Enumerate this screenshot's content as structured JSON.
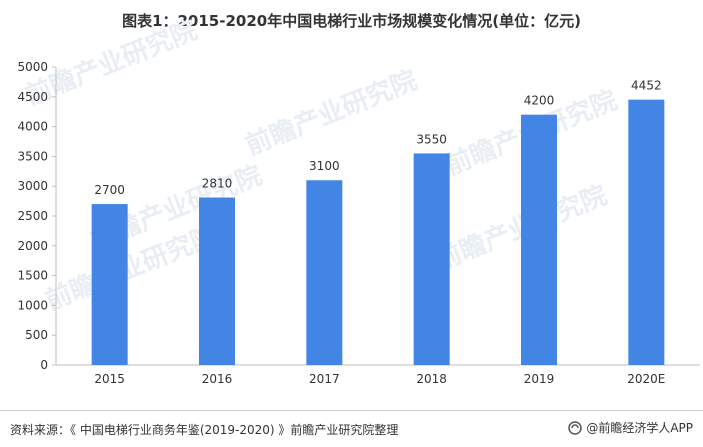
{
  "title": "图表1：2015-2020年中国电梯行业市场规模变化情况(单位：亿元)",
  "watermark_text": "前瞻产业研究院",
  "chart_data": {
    "type": "bar",
    "categories": [
      "2015",
      "2016",
      "2017",
      "2018",
      "2019",
      "2020E"
    ],
    "values": [
      2700,
      2810,
      3100,
      3550,
      4200,
      4452
    ],
    "data_labels": [
      "2700",
      "2810",
      "3100",
      "3550",
      "4200",
      "4452"
    ],
    "y_ticks": [
      "0",
      "500",
      "1000",
      "1500",
      "2000",
      "2500",
      "3000",
      "3500",
      "4000",
      "4500",
      "5000"
    ],
    "ylim": [
      0,
      5000
    ],
    "title": "图表1：2015-2020年中国电梯行业市场规模变化情况(单位：亿元)",
    "xlabel": "",
    "ylabel": "",
    "grid": false,
    "bar_color": "#4285e4"
  },
  "footer": {
    "source": "资料来源：《 中国电梯行业商务年鉴(2019-2020) 》前瞻产业研究院整理",
    "brand": "@前瞻经济学人APP",
    "brand_icon": "qianzhan-logo-icon"
  }
}
